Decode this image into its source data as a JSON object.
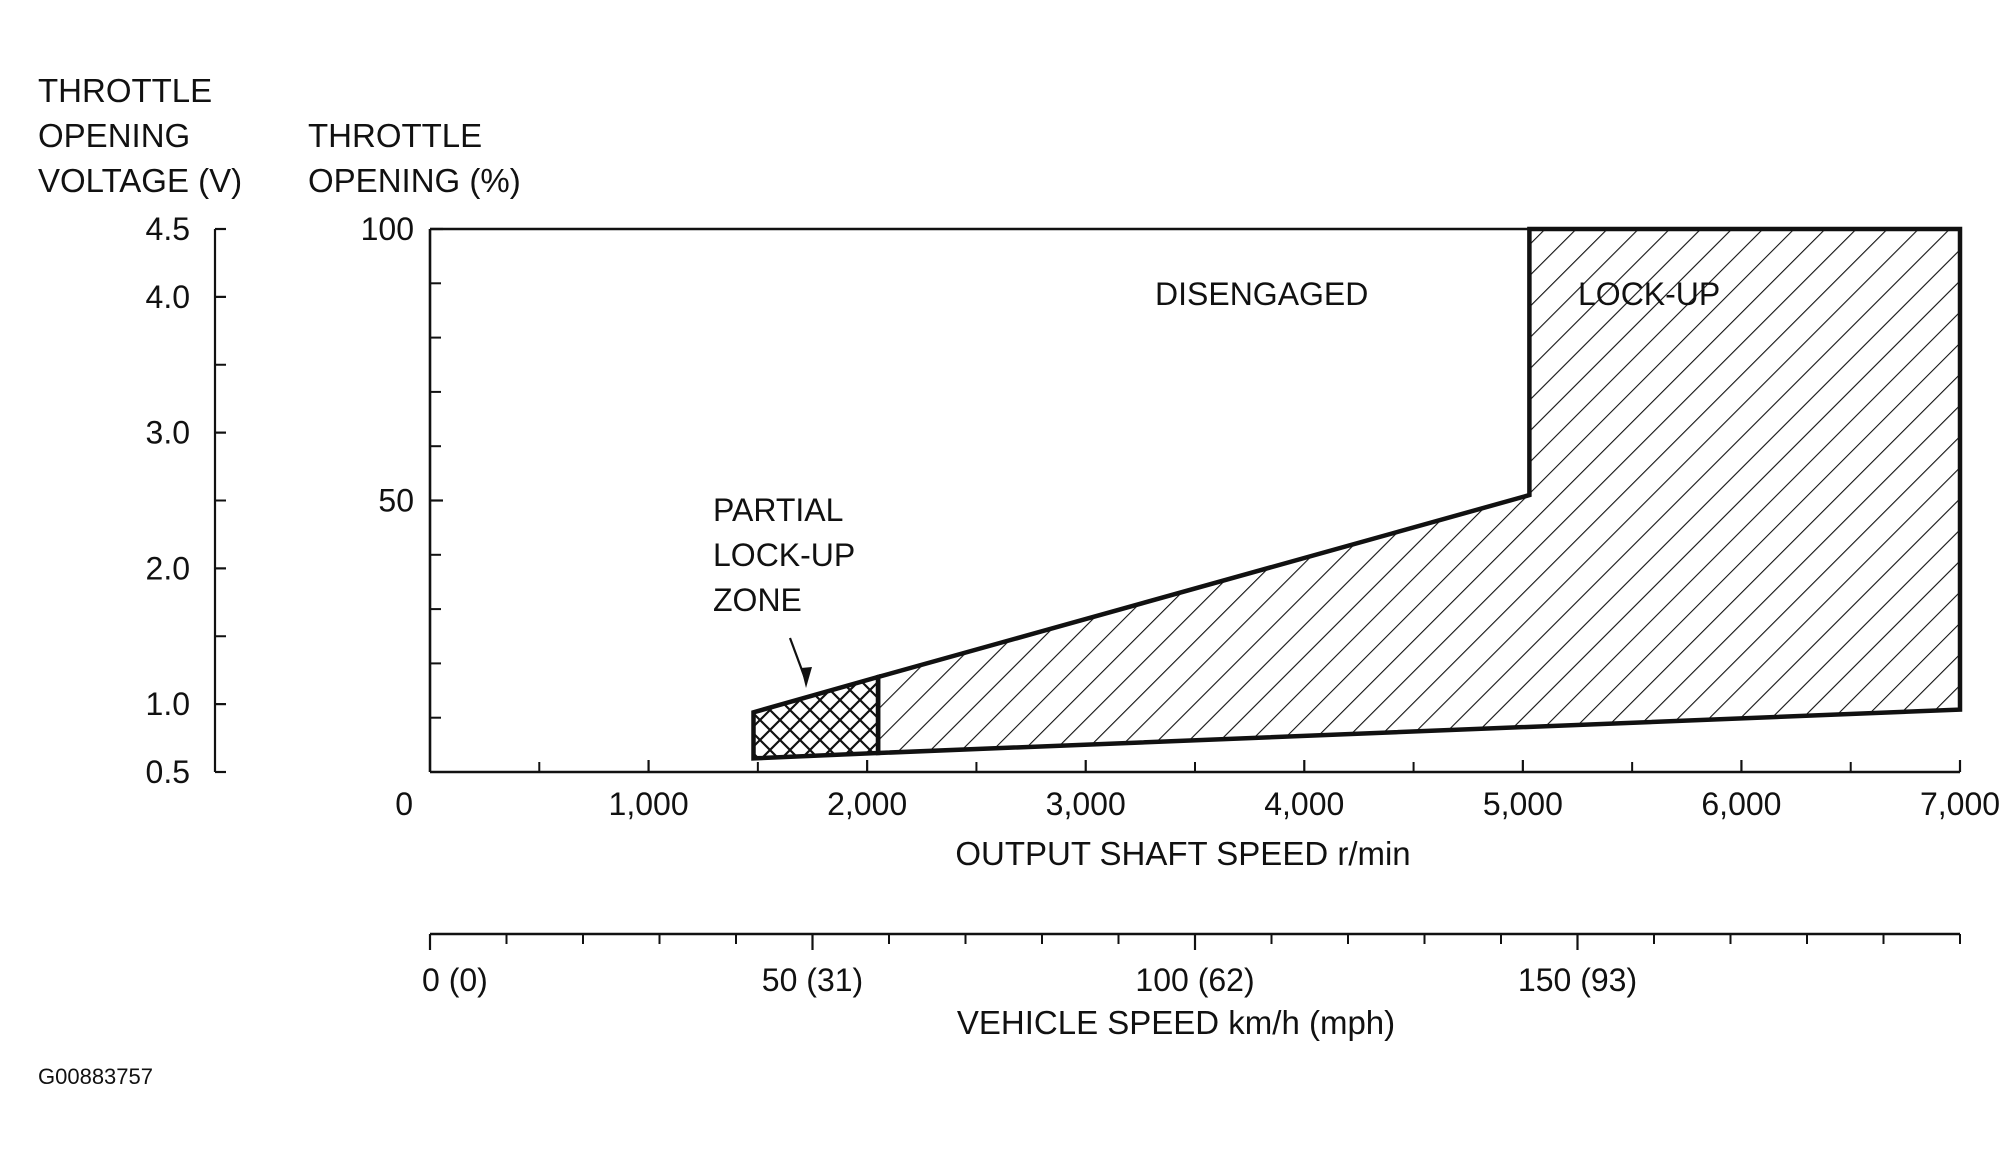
{
  "chart_data": {
    "type": "area",
    "y_axes": {
      "voltage": {
        "label_lines": [
          "THROTTLE",
          "OPENING",
          "VOLTAGE (V)"
        ],
        "ticks": [
          {
            "v": 0.5,
            "label": "0.5"
          },
          {
            "v": 1.0,
            "label": "1.0"
          },
          {
            "v": 2.0,
            "label": "2.0"
          },
          {
            "v": 3.0,
            "label": "3.0"
          },
          {
            "v": 4.0,
            "label": "4.0"
          },
          {
            "v": 4.5,
            "label": "4.5"
          }
        ],
        "minor": [
          1.5,
          2.5,
          3.5
        ],
        "range": [
          0.5,
          4.5
        ]
      },
      "throttle": {
        "label_lines": [
          "THROTTLE",
          "OPENING (%)"
        ],
        "ticks": [
          {
            "v": 0,
            "label": "0"
          },
          {
            "v": 50,
            "label": "50"
          },
          {
            "v": 100,
            "label": "100"
          }
        ],
        "minor": [
          10,
          20,
          30,
          40,
          60,
          70,
          80,
          90
        ],
        "range": [
          0,
          100
        ]
      }
    },
    "x_axes": {
      "output_shaft": {
        "label": "OUTPUT SHAFT SPEED r/min",
        "ticks": [
          {
            "v": 1000,
            "label": "1,000"
          },
          {
            "v": 2000,
            "label": "2,000"
          },
          {
            "v": 3000,
            "label": "3,000"
          },
          {
            "v": 4000,
            "label": "4,000"
          },
          {
            "v": 5000,
            "label": "5,000"
          },
          {
            "v": 6000,
            "label": "6,000"
          },
          {
            "v": 7000,
            "label": "7,000"
          }
        ],
        "minor": [
          500,
          1500,
          2500,
          3500,
          4500,
          5500,
          6500
        ],
        "range": [
          0,
          7000
        ]
      },
      "vehicle_speed": {
        "label": "VEHICLE SPEED km/h (mph)",
        "ticks": [
          {
            "v": 0,
            "label": "0 (0)"
          },
          {
            "v": 50,
            "label": "50 (31)"
          },
          {
            "v": 100,
            "label": "100 (62)"
          },
          {
            "v": 150,
            "label": "150 (93)"
          }
        ],
        "range": [
          0,
          200
        ],
        "minor_step": 10
      }
    },
    "regions": [
      {
        "name": "LOCK-UP",
        "pattern": "diagonal-hatch",
        "points": [
          [
            2050,
            3.5
          ],
          [
            7000,
            11.5
          ],
          [
            7000,
            100
          ],
          [
            5030,
            100
          ],
          [
            5030,
            51
          ],
          [
            2050,
            17.5
          ]
        ]
      },
      {
        "name": "PARTIAL LOCK-UP ZONE",
        "pattern": "cross-hatch",
        "points": [
          [
            1480,
            2.5
          ],
          [
            2050,
            3.5
          ],
          [
            2050,
            17.5
          ],
          [
            1480,
            11
          ]
        ]
      },
      {
        "name": "DISENGAGED",
        "pattern": "none"
      }
    ],
    "labels": {
      "disengaged": "DISENGAGED",
      "lockup": "LOCK-UP",
      "partial": [
        "PARTIAL",
        "LOCK-UP",
        "ZONE"
      ]
    },
    "figure_id": "G00883757"
  }
}
